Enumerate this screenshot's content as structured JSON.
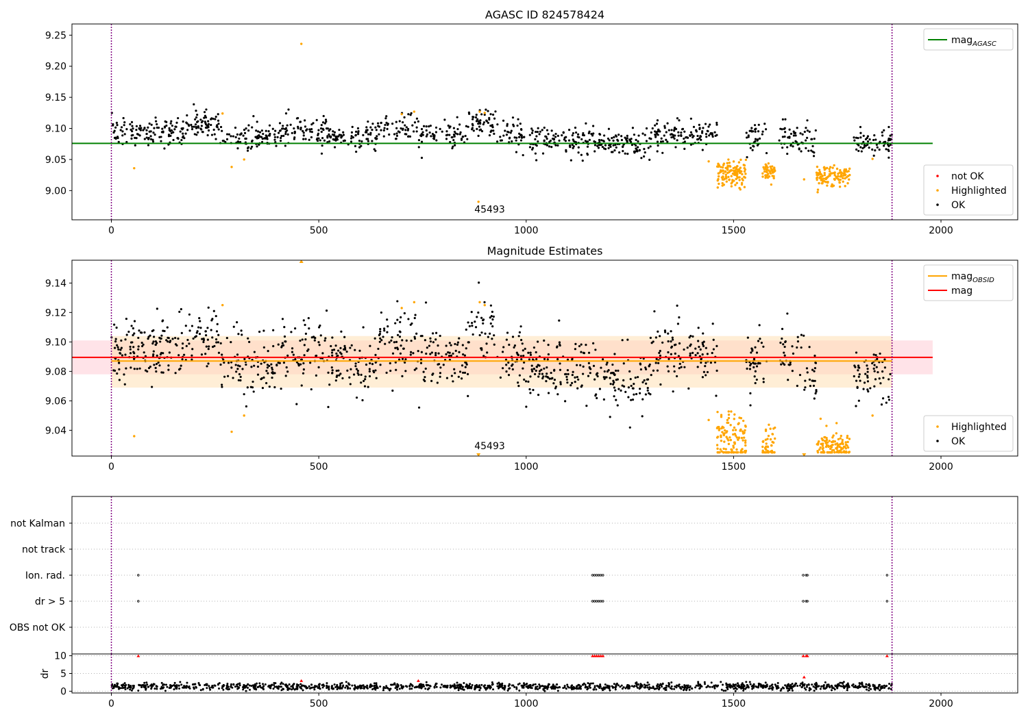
{
  "colors": {
    "ok": "#000000",
    "highlighted": "#ffa500",
    "not_ok": "#ff0000",
    "mag_agasc": "#008000",
    "mag_obsid": "#ffa500",
    "mag": "#ff0000",
    "vline": "#800080",
    "band_mag": "#ffc0cb",
    "band_obsid": "#ffdead",
    "grid": "#b0b0b0"
  },
  "chart_data": [
    {
      "type": "scatter",
      "title": "AGASC ID 824578424",
      "xlabel": "",
      "ylabel": "",
      "xlim": [
        -95,
        2185
      ],
      "ylim": [
        8.953,
        9.268
      ],
      "xticks": [
        0,
        500,
        1000,
        1500,
        2000
      ],
      "yticks": [
        9.0,
        9.05,
        9.1,
        9.15,
        9.2,
        9.25
      ],
      "ytick_labels": [
        "9.00",
        "9.05",
        "9.10",
        "9.15",
        "9.20",
        "9.25"
      ],
      "vertical_lines": [
        0,
        1882
      ],
      "annotations": [
        {
          "text": "45493",
          "x": 912,
          "y": 8.967
        }
      ],
      "hlines": [
        {
          "name": "mag_AGASC",
          "label": "mag",
          "sub": "AGASC",
          "y": 9.076,
          "x0": -95,
          "x1": 1980,
          "color": "#008000"
        }
      ],
      "legend": {
        "position": "upper right",
        "entries": [
          {
            "label": "mag",
            "sub": "AGASC",
            "kind": "line",
            "color": "#008000"
          }
        ]
      },
      "legend2": {
        "position": "lower right",
        "entries": [
          {
            "label": "not OK",
            "kind": "dot",
            "color": "#ff0000"
          },
          {
            "label": "Highlighted",
            "kind": "dot",
            "color": "#ffa500"
          },
          {
            "label": "OK",
            "kind": "dot",
            "color": "#000000"
          }
        ]
      },
      "series": [
        {
          "name": "OK",
          "color": "#000000",
          "generator": {
            "n_points": 1300,
            "base": 9.09,
            "noise": 0.011,
            "segments": [
              [
                0,
                180,
                9.095
              ],
              [
                180,
                260,
                9.105
              ],
              [
                260,
                400,
                9.085
              ],
              [
                400,
                520,
                9.095
              ],
              [
                520,
                640,
                9.085
              ],
              [
                640,
                740,
                9.1
              ],
              [
                740,
                860,
                9.09
              ],
              [
                860,
                930,
                9.11
              ],
              [
                930,
                1000,
                9.09
              ],
              [
                1000,
                1200,
                9.08
              ],
              [
                1200,
                1300,
                9.075
              ],
              [
                1300,
                1460,
                9.092
              ],
              [
                1530,
                1580,
                9.085
              ],
              [
                1610,
                1660,
                9.088
              ],
              [
                1660,
                1700,
                9.08
              ],
              [
                1790,
                1882,
                9.076
              ]
            ]
          }
        },
        {
          "name": "Highlighted",
          "color": "#ffa500",
          "points": [
            [
              55,
              9.036
            ],
            [
              268,
              9.124
            ],
            [
              290,
              9.038
            ],
            [
              320,
              9.05
            ],
            [
              458,
              9.236
            ],
            [
              700,
              9.123
            ],
            [
              730,
              9.127
            ],
            [
              888,
              9.127
            ],
            [
              900,
              9.125
            ],
            [
              885,
              8.982
            ],
            [
              1440,
              9.047
            ],
            [
              1670,
              9.018
            ],
            [
              1835,
              9.051
            ]
          ],
          "clusters": [
            [
              1460,
              1530,
              9.028,
              0.01,
              120
            ],
            [
              1570,
              1600,
              9.028,
              0.007,
              45
            ],
            [
              1700,
              1780,
              9.024,
              0.008,
              110
            ]
          ]
        }
      ]
    },
    {
      "type": "scatter",
      "title": "Magnitude Estimates",
      "xlabel": "",
      "ylabel": "",
      "xlim": [
        -95,
        2185
      ],
      "ylim": [
        9.0225,
        9.1555
      ],
      "xticks": [
        0,
        500,
        1000,
        1500,
        2000
      ],
      "yticks": [
        9.04,
        9.06,
        9.08,
        9.1,
        9.12,
        9.14
      ],
      "ytick_labels": [
        "9.04",
        "9.06",
        "9.08",
        "9.10",
        "9.12",
        "9.14"
      ],
      "vertical_lines": [
        0,
        1882
      ],
      "annotations": [
        {
          "text": "45493",
          "x": 912,
          "y": 9.028
        }
      ],
      "bands": [
        {
          "name": "mag band",
          "y0": 9.078,
          "y1": 9.101,
          "x0": -95,
          "x1": 1980,
          "color": "#ffc0cb",
          "opacity": 0.45
        },
        {
          "name": "mag_OBSID band",
          "y0": 9.069,
          "y1": 9.104,
          "x0": 0,
          "x1": 1882,
          "color": "#ffdead",
          "opacity": 0.5
        }
      ],
      "hlines": [
        {
          "name": "mag_OBSID",
          "label": "mag",
          "sub": "OBSID",
          "y": 9.087,
          "x0": 0,
          "x1": 1882,
          "color": "#ffa500"
        },
        {
          "name": "mag",
          "label": "mag",
          "y": 9.0895,
          "x0": -95,
          "x1": 1980,
          "color": "#ff0000"
        }
      ],
      "legend": {
        "position": "upper right",
        "entries": [
          {
            "label": "mag",
            "sub": "OBSID",
            "kind": "line",
            "color": "#ffa500"
          },
          {
            "label": "mag",
            "kind": "line",
            "color": "#ff0000"
          }
        ]
      },
      "legend2": {
        "position": "lower right",
        "entries": [
          {
            "label": "Highlighted",
            "kind": "dot",
            "color": "#ffa500"
          },
          {
            "label": "OK",
            "kind": "dot",
            "color": "#000000"
          }
        ]
      },
      "series": [
        {
          "name": "OK",
          "color": "#000000",
          "generator": {
            "n_points": 1300,
            "base": 9.09,
            "noise": 0.011,
            "segments": [
              [
                0,
                180,
                9.095
              ],
              [
                180,
                260,
                9.105
              ],
              [
                260,
                400,
                9.085
              ],
              [
                400,
                520,
                9.095
              ],
              [
                520,
                640,
                9.085
              ],
              [
                640,
                740,
                9.1
              ],
              [
                740,
                860,
                9.09
              ],
              [
                860,
                930,
                9.11
              ],
              [
                930,
                1000,
                9.09
              ],
              [
                1000,
                1200,
                9.08
              ],
              [
                1200,
                1300,
                9.075
              ],
              [
                1300,
                1460,
                9.092
              ],
              [
                1530,
                1580,
                9.085
              ],
              [
                1610,
                1660,
                9.088
              ],
              [
                1660,
                1700,
                9.08
              ],
              [
                1790,
                1882,
                9.076
              ]
            ]
          }
        },
        {
          "name": "Highlighted",
          "color": "#ffa500",
          "points": [
            [
              55,
              9.036
            ],
            [
              268,
              9.125
            ],
            [
              290,
              9.039
            ],
            [
              320,
              9.05
            ],
            [
              700,
              9.123
            ],
            [
              730,
              9.127
            ],
            [
              888,
              9.127
            ],
            [
              900,
              9.125
            ],
            [
              1440,
              9.047
            ],
            [
              1835,
              9.05
            ]
          ],
          "clusters": [
            [
              1460,
              1530,
              9.032,
              0.01,
              120
            ],
            [
              1570,
              1600,
              9.03,
              0.006,
              45
            ],
            [
              1700,
              1780,
              9.028,
              0.006,
              110
            ]
          ],
          "clip_markers": [
            [
              458,
              9.1555,
              "up"
            ],
            [
              885,
              9.0225,
              "down"
            ],
            [
              1670,
              9.0225,
              "down"
            ]
          ]
        }
      ]
    },
    {
      "type": "scatter",
      "title": "",
      "xlabel": "",
      "ylabel": "",
      "xlim": [
        -95,
        2185
      ],
      "xticks": [
        0,
        500,
        1000,
        1500,
        2000
      ],
      "vertical_lines": [
        0,
        1882
      ],
      "categories": [
        "not Kalman",
        "not track",
        "Ion. rad.",
        "dr > 5",
        "OBS not OK"
      ],
      "flag_points": {
        "Ion. rad.": [
          65,
          1160,
          1165,
          1170,
          1175,
          1180,
          1185,
          1668,
          1675,
          1678,
          1870
        ],
        "dr > 5": [
          65,
          1160,
          1165,
          1170,
          1175,
          1180,
          1185,
          1668,
          1675,
          1678,
          1870
        ]
      }
    },
    {
      "type": "scatter",
      "title": "",
      "xlabel": "",
      "ylabel": "dr",
      "xlim": [
        -95,
        2185
      ],
      "ylim": [
        -0.5,
        10.5
      ],
      "xticks": [
        0,
        500,
        1000,
        1500,
        2000
      ],
      "yticks": [
        0,
        5,
        10
      ],
      "ytick_labels": [
        "0",
        "5",
        "10"
      ],
      "vertical_lines": [
        0,
        1882
      ],
      "series": [
        {
          "name": "OK",
          "color": "#000000",
          "generator": {
            "n_points": 1300,
            "base": 1.3,
            "noise": 0.5
          }
        },
        {
          "name": "not OK",
          "color": "#ff0000",
          "points": [
            [
              458,
              3.0
            ],
            [
              740,
              3.0
            ],
            [
              1670,
              4.0
            ],
            [
              65,
              10
            ],
            [
              1160,
              10
            ],
            [
              1165,
              10
            ],
            [
              1170,
              10
            ],
            [
              1175,
              10
            ],
            [
              1180,
              10
            ],
            [
              1185,
              10
            ],
            [
              1668,
              10
            ],
            [
              1675,
              10
            ],
            [
              1678,
              10
            ],
            [
              1870,
              10
            ]
          ]
        }
      ]
    }
  ]
}
